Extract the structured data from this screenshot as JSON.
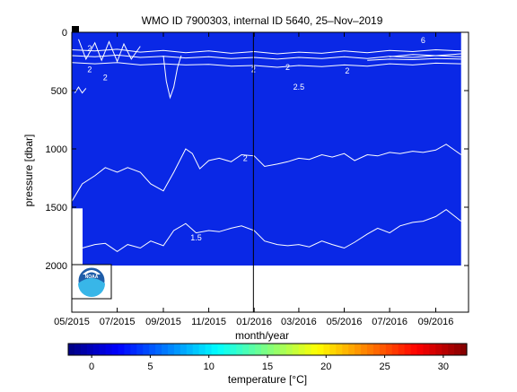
{
  "chart_data": {
    "type": "heatmap",
    "title": "WMO ID 7900303, internal ID 5640, 25–Nov–2019",
    "xlabel": "month/year",
    "ylabel": "pressure [dbar]",
    "x_ticks": [
      "05/2015",
      "07/2015",
      "09/2015",
      "11/2015",
      "01/2016",
      "03/2016",
      "05/2016",
      "07/2016",
      "09/2016"
    ],
    "y_ticks": [
      0,
      500,
      1000,
      1500,
      2000
    ],
    "ylim": [
      0,
      2400
    ],
    "y_inverted": true,
    "xlim": [
      "2015-05-01",
      "2016-10-15"
    ],
    "data_extent": {
      "x": [
        "2015-05-01",
        "2016-10-05"
      ],
      "y": [
        0,
        2000
      ]
    },
    "field_color": "#0a28e6",
    "vertical_marker": "2015-12-31",
    "contours": [
      {
        "label": "2",
        "points": [
          [
            "2015-05-01",
            1450
          ],
          [
            "2015-05-15",
            1300
          ],
          [
            "2015-06-01",
            1230
          ],
          [
            "2015-06-15",
            1160
          ],
          [
            "2015-07-01",
            1200
          ],
          [
            "2015-07-15",
            1160
          ],
          [
            "2015-08-01",
            1200
          ],
          [
            "2015-08-15",
            1300
          ],
          [
            "2015-09-01",
            1360
          ],
          [
            "2015-09-15",
            1200
          ],
          [
            "2015-10-01",
            1000
          ],
          [
            "2015-10-10",
            1040
          ],
          [
            "2015-10-20",
            1170
          ],
          [
            "2015-11-01",
            1100
          ],
          [
            "2015-11-15",
            1080
          ],
          [
            "2015-12-01",
            1110
          ],
          [
            "2015-12-15",
            1050
          ],
          [
            "2016-01-01",
            1060
          ],
          [
            "2016-01-15",
            1150
          ],
          [
            "2016-02-01",
            1130
          ],
          [
            "2016-02-15",
            1110
          ],
          [
            "2016-03-01",
            1080
          ],
          [
            "2016-03-15",
            1090
          ],
          [
            "2016-04-01",
            1050
          ],
          [
            "2016-04-15",
            1070
          ],
          [
            "2016-05-01",
            1040
          ],
          [
            "2016-05-15",
            1100
          ],
          [
            "2016-06-01",
            1050
          ],
          [
            "2016-06-15",
            1060
          ],
          [
            "2016-07-01",
            1030
          ],
          [
            "2016-07-15",
            1040
          ],
          [
            "2016-08-01",
            1020
          ],
          [
            "2016-08-15",
            1030
          ],
          [
            "2016-09-01",
            1010
          ],
          [
            "2016-09-15",
            960
          ],
          [
            "2016-10-05",
            1050
          ]
        ]
      },
      {
        "label": "1.5",
        "points": [
          [
            "2015-05-15",
            1850
          ],
          [
            "2015-06-01",
            1820
          ],
          [
            "2015-06-15",
            1810
          ],
          [
            "2015-07-01",
            1880
          ],
          [
            "2015-07-15",
            1820
          ],
          [
            "2015-08-01",
            1850
          ],
          [
            "2015-08-15",
            1790
          ],
          [
            "2015-09-01",
            1830
          ],
          [
            "2015-09-15",
            1700
          ],
          [
            "2015-10-01",
            1640
          ],
          [
            "2015-10-15",
            1720
          ],
          [
            "2015-11-01",
            1700
          ],
          [
            "2015-11-15",
            1710
          ],
          [
            "2015-12-01",
            1680
          ],
          [
            "2015-12-15",
            1660
          ],
          [
            "2016-01-01",
            1700
          ],
          [
            "2016-01-15",
            1790
          ],
          [
            "2016-02-01",
            1820
          ],
          [
            "2016-02-15",
            1830
          ],
          [
            "2016-03-01",
            1820
          ],
          [
            "2016-03-15",
            1840
          ],
          [
            "2016-04-01",
            1790
          ],
          [
            "2016-04-15",
            1820
          ],
          [
            "2016-05-01",
            1850
          ],
          [
            "2016-05-15",
            1800
          ],
          [
            "2016-06-01",
            1730
          ],
          [
            "2016-06-15",
            1680
          ],
          [
            "2016-07-01",
            1720
          ],
          [
            "2016-07-15",
            1660
          ],
          [
            "2016-08-01",
            1630
          ],
          [
            "2016-08-15",
            1620
          ],
          [
            "2016-09-01",
            1580
          ],
          [
            "2016-09-15",
            1520
          ],
          [
            "2016-10-05",
            1620
          ]
        ]
      },
      {
        "label": "2",
        "points": [
          [
            "2015-05-01",
            260
          ],
          [
            "2015-06-01",
            270
          ],
          [
            "2015-07-01",
            260
          ],
          [
            "2015-08-01",
            280
          ],
          [
            "2015-09-01",
            270
          ],
          [
            "2015-10-01",
            280
          ],
          [
            "2015-11-01",
            275
          ],
          [
            "2015-12-01",
            290
          ],
          [
            "2016-01-01",
            285
          ],
          [
            "2016-02-01",
            300
          ],
          [
            "2016-03-01",
            285
          ],
          [
            "2016-04-01",
            295
          ],
          [
            "2016-05-01",
            280
          ],
          [
            "2016-06-01",
            290
          ],
          [
            "2016-07-01",
            270
          ],
          [
            "2016-08-01",
            280
          ],
          [
            "2016-09-01",
            265
          ],
          [
            "2016-10-05",
            270
          ]
        ]
      },
      {
        "label": "",
        "points": [
          [
            "2015-05-01",
            200
          ],
          [
            "2015-06-01",
            210
          ],
          [
            "2015-07-01",
            195
          ],
          [
            "2015-08-01",
            215
          ],
          [
            "2015-09-01",
            205
          ],
          [
            "2015-10-01",
            220
          ],
          [
            "2015-11-01",
            210
          ],
          [
            "2015-12-01",
            225
          ],
          [
            "2016-01-01",
            215
          ],
          [
            "2016-02-01",
            230
          ],
          [
            "2016-03-01",
            215
          ],
          [
            "2016-04-01",
            225
          ],
          [
            "2016-05-01",
            210
          ],
          [
            "2016-06-01",
            225
          ],
          [
            "2016-07-01",
            205
          ],
          [
            "2016-08-01",
            215
          ],
          [
            "2016-09-01",
            200
          ],
          [
            "2016-10-05",
            210
          ]
        ]
      },
      {
        "label": "",
        "points": [
          [
            "2015-05-01",
            150
          ],
          [
            "2015-06-01",
            160
          ],
          [
            "2015-07-01",
            145
          ],
          [
            "2015-08-01",
            170
          ],
          [
            "2015-09-01",
            155
          ],
          [
            "2015-10-01",
            175
          ],
          [
            "2015-11-01",
            160
          ],
          [
            "2015-12-01",
            180
          ],
          [
            "2016-01-01",
            165
          ],
          [
            "2016-02-01",
            185
          ],
          [
            "2016-03-01",
            170
          ],
          [
            "2016-04-01",
            180
          ],
          [
            "2016-05-01",
            160
          ],
          [
            "2016-06-01",
            175
          ],
          [
            "2016-07-01",
            155
          ],
          [
            "2016-08-01",
            165
          ],
          [
            "2016-09-01",
            150
          ],
          [
            "2016-10-05",
            160
          ]
        ]
      },
      {
        "label": "",
        "points": [
          [
            "2015-05-10",
            60
          ],
          [
            "2015-05-20",
            230
          ],
          [
            "2015-06-01",
            90
          ],
          [
            "2015-06-10",
            240
          ],
          [
            "2015-06-20",
            80
          ],
          [
            "2015-07-01",
            250
          ],
          [
            "2015-07-10",
            100
          ],
          [
            "2015-07-20",
            230
          ],
          [
            "2015-08-01",
            120
          ]
        ]
      },
      {
        "label": "",
        "points": [
          [
            "2015-09-01",
            200
          ],
          [
            "2015-09-05",
            420
          ],
          [
            "2015-09-10",
            560
          ],
          [
            "2015-09-15",
            470
          ],
          [
            "2015-09-20",
            300
          ],
          [
            "2015-09-25",
            200
          ]
        ]
      },
      {
        "label": "",
        "points": [
          [
            "2015-05-05",
            520
          ],
          [
            "2015-05-10",
            470
          ],
          [
            "2015-05-15",
            520
          ],
          [
            "2015-05-20",
            480
          ]
        ]
      },
      {
        "label": "",
        "points": [
          [
            "2016-07-01",
            210
          ],
          [
            "2016-08-01",
            190
          ],
          [
            "2016-09-01",
            200
          ],
          [
            "2016-10-05",
            185
          ]
        ]
      },
      {
        "label": "",
        "points": [
          [
            "2016-06-01",
            240
          ],
          [
            "2016-07-01",
            230
          ],
          [
            "2016-08-01",
            235
          ],
          [
            "2016-09-01",
            225
          ],
          [
            "2016-10-05",
            230
          ]
        ]
      }
    ],
    "inline_labels": [
      {
        "text": "2.5",
        "x": "2016-03-01",
        "y": 470
      },
      {
        "text": "2",
        "x": "2015-12-20",
        "y": 1080
      },
      {
        "text": "1.5",
        "x": "2015-10-15",
        "y": 1760
      },
      {
        "text": "2",
        "x": "2015-06-15",
        "y": 390
      },
      {
        "text": "2",
        "x": "2015-12-31",
        "y": 320
      },
      {
        "text": "2",
        "x": "2016-02-15",
        "y": 300
      },
      {
        "text": "2",
        "x": "2016-05-05",
        "y": 330
      },
      {
        "text": "2",
        "x": "2015-05-25",
        "y": 320
      },
      {
        "text": "2",
        "x": "2015-05-25",
        "y": 140
      },
      {
        "text": "6",
        "x": "2016-08-15",
        "y": 70
      }
    ],
    "colorbar": {
      "label": "temperature [°C]",
      "range": [
        -2,
        32
      ],
      "ticks": [
        0,
        5,
        10,
        15,
        20,
        25,
        30
      ],
      "colormap": "jet"
    }
  }
}
